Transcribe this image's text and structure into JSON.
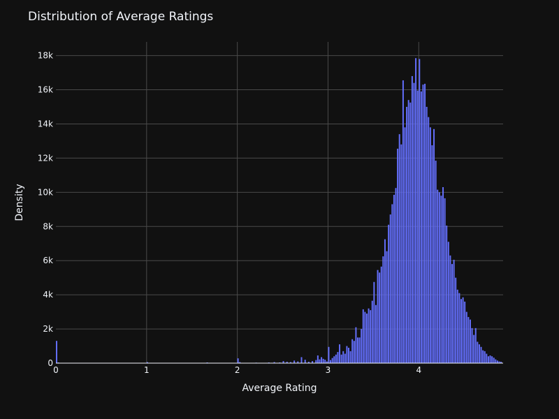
{
  "chart_data": {
    "type": "bar",
    "title": "Distribution of Average Ratings",
    "xlabel": "Average Rating",
    "ylabel": "Density",
    "xlim": [
      0,
      4.93
    ],
    "ylim": [
      0,
      18800
    ],
    "x_ticks": [
      0,
      1,
      2,
      3,
      4
    ],
    "x_tick_labels": [
      "0",
      "1",
      "2",
      "3",
      "4"
    ],
    "y_ticks": [
      0,
      2000,
      4000,
      6000,
      8000,
      10000,
      12000,
      14000,
      16000,
      18000
    ],
    "y_tick_labels": [
      "0",
      "2k",
      "4k",
      "6k",
      "8k",
      "10k",
      "12k",
      "14k",
      "16k",
      "18k"
    ],
    "grid": true,
    "legend": "none",
    "bar_color": "#636efa",
    "background": "#111111",
    "bin_width": 0.02,
    "bins": [
      [
        0.0,
        1300
      ],
      [
        0.02,
        40
      ],
      [
        1.0,
        60
      ],
      [
        1.66,
        40
      ],
      [
        2.0,
        280
      ],
      [
        2.02,
        60
      ],
      [
        2.2,
        30
      ],
      [
        2.34,
        40
      ],
      [
        2.4,
        60
      ],
      [
        2.46,
        40
      ],
      [
        2.5,
        120
      ],
      [
        2.54,
        80
      ],
      [
        2.58,
        60
      ],
      [
        2.62,
        150
      ],
      [
        2.66,
        100
      ],
      [
        2.7,
        350
      ],
      [
        2.74,
        200
      ],
      [
        2.78,
        80
      ],
      [
        2.82,
        120
      ],
      [
        2.86,
        180
      ],
      [
        2.88,
        450
      ],
      [
        2.9,
        220
      ],
      [
        2.92,
        350
      ],
      [
        2.94,
        250
      ],
      [
        2.96,
        200
      ],
      [
        2.98,
        100
      ],
      [
        3.0,
        950
      ],
      [
        3.02,
        180
      ],
      [
        3.04,
        300
      ],
      [
        3.06,
        400
      ],
      [
        3.08,
        500
      ],
      [
        3.1,
        650
      ],
      [
        3.12,
        1100
      ],
      [
        3.14,
        500
      ],
      [
        3.16,
        700
      ],
      [
        3.18,
        550
      ],
      [
        3.2,
        1000
      ],
      [
        3.22,
        900
      ],
      [
        3.24,
        700
      ],
      [
        3.26,
        1400
      ],
      [
        3.28,
        1300
      ],
      [
        3.3,
        2100
      ],
      [
        3.32,
        1500
      ],
      [
        3.34,
        1500
      ],
      [
        3.36,
        2000
      ],
      [
        3.38,
        3150
      ],
      [
        3.4,
        3000
      ],
      [
        3.42,
        2900
      ],
      [
        3.44,
        3200
      ],
      [
        3.46,
        3100
      ],
      [
        3.48,
        3650
      ],
      [
        3.5,
        4750
      ],
      [
        3.52,
        3400
      ],
      [
        3.54,
        5450
      ],
      [
        3.56,
        5300
      ],
      [
        3.58,
        5650
      ],
      [
        3.6,
        6250
      ],
      [
        3.62,
        7250
      ],
      [
        3.64,
        6550
      ],
      [
        3.66,
        8100
      ],
      [
        3.68,
        8700
      ],
      [
        3.7,
        9300
      ],
      [
        3.72,
        9850
      ],
      [
        3.74,
        10250
      ],
      [
        3.76,
        12550
      ],
      [
        3.78,
        13400
      ],
      [
        3.8,
        12800
      ],
      [
        3.82,
        16550
      ],
      [
        3.84,
        13800
      ],
      [
        3.86,
        15000
      ],
      [
        3.88,
        15400
      ],
      [
        3.9,
        15250
      ],
      [
        3.92,
        16800
      ],
      [
        3.94,
        16400
      ],
      [
        3.96,
        17850
      ],
      [
        3.98,
        15950
      ],
      [
        4.0,
        17800
      ],
      [
        4.02,
        15900
      ],
      [
        4.04,
        16300
      ],
      [
        4.06,
        16350
      ],
      [
        4.08,
        15000
      ],
      [
        4.1,
        14400
      ],
      [
        4.12,
        13800
      ],
      [
        4.14,
        12750
      ],
      [
        4.16,
        13700
      ],
      [
        4.18,
        11850
      ],
      [
        4.2,
        10150
      ],
      [
        4.22,
        10000
      ],
      [
        4.24,
        9800
      ],
      [
        4.26,
        10300
      ],
      [
        4.28,
        9650
      ],
      [
        4.3,
        8050
      ],
      [
        4.32,
        7100
      ],
      [
        4.34,
        6300
      ],
      [
        4.36,
        5800
      ],
      [
        4.38,
        6050
      ],
      [
        4.4,
        5000
      ],
      [
        4.42,
        4300
      ],
      [
        4.44,
        4100
      ],
      [
        4.46,
        3750
      ],
      [
        4.48,
        3850
      ],
      [
        4.5,
        3600
      ],
      [
        4.52,
        3000
      ],
      [
        4.54,
        2700
      ],
      [
        4.56,
        2550
      ],
      [
        4.58,
        2050
      ],
      [
        4.6,
        1650
      ],
      [
        4.62,
        2050
      ],
      [
        4.64,
        1250
      ],
      [
        4.66,
        1100
      ],
      [
        4.68,
        950
      ],
      [
        4.7,
        750
      ],
      [
        4.72,
        700
      ],
      [
        4.74,
        550
      ],
      [
        4.76,
        400
      ],
      [
        4.78,
        450
      ],
      [
        4.8,
        400
      ],
      [
        4.82,
        320
      ],
      [
        4.84,
        220
      ],
      [
        4.86,
        150
      ],
      [
        4.88,
        100
      ],
      [
        4.9,
        80
      ]
    ]
  }
}
